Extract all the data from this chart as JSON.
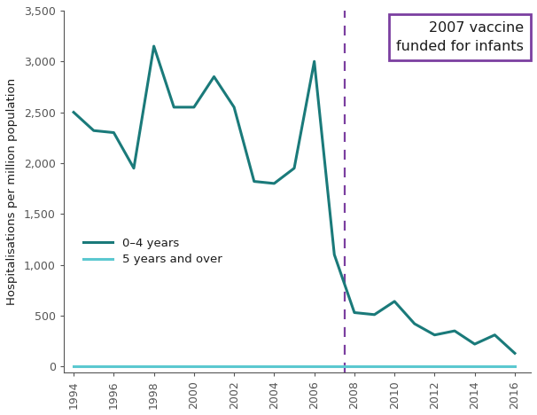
{
  "years": [
    1994,
    1995,
    1996,
    1997,
    1998,
    1999,
    2000,
    2001,
    2002,
    2003,
    2004,
    2005,
    2006,
    2007,
    2008,
    2009,
    2010,
    2011,
    2012,
    2013,
    2014,
    2015,
    2016
  ],
  "series_0_4": [
    2500,
    2320,
    2300,
    1950,
    3150,
    2550,
    2550,
    2850,
    2550,
    1820,
    1800,
    1950,
    3000,
    1100,
    530,
    510,
    640,
    420,
    310,
    350,
    220,
    310,
    130
  ],
  "series_5plus": [
    5,
    5,
    5,
    5,
    5,
    5,
    5,
    5,
    5,
    5,
    5,
    5,
    5,
    5,
    5,
    5,
    5,
    5,
    5,
    5,
    5,
    5,
    5
  ],
  "line_color_0_4": "#1a7a7a",
  "line_color_5plus": "#5bc8d0",
  "vaccine_x": 2007.5,
  "dashed_line_color": "#7b3fa0",
  "annotation_text": "2007 vaccine\nfunded for infants",
  "annotation_box_color": "#7b3fa0",
  "ylabel": "Hospitalisations per million population",
  "ylim": [
    -60,
    3500
  ],
  "xlim": [
    1993.5,
    2016.8
  ],
  "yticks": [
    0,
    500,
    1000,
    1500,
    2000,
    2500,
    3000,
    3500
  ],
  "xtick_values": [
    1994,
    1996,
    1998,
    2000,
    2002,
    2004,
    2006,
    2008,
    2010,
    2012,
    2014,
    2016
  ],
  "xtick_labels": [
    "1994",
    "1996",
    "1998",
    "2000",
    "2002",
    "2004",
    "2006",
    "2008",
    "2010",
    "2012",
    "2014",
    "2016"
  ],
  "legend_label_0_4": "0–4 years",
  "legend_label_5plus": "5 years and over",
  "line_width": 2.2,
  "background_color": "#ffffff",
  "spine_color": "#555555",
  "tick_color": "#555555",
  "text_color": "#1a1a1a"
}
